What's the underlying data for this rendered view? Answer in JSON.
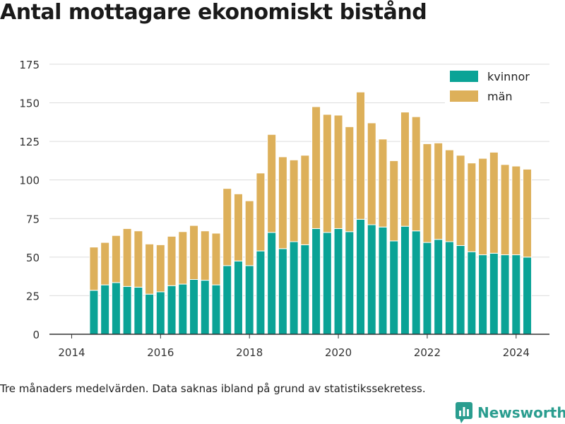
{
  "title": "Antal mottagare ekonomiskt bistånd",
  "caption": "Tre månaders medelvärden. Data saknas ibland på grund av statistikssekretess.",
  "brand": {
    "name": "Newsworthy",
    "icon": "newsworthy-chart-logo-icon"
  },
  "colors": {
    "kvinnor": "#0aa396",
    "man": "#ddb05a",
    "grid": "#dcdcdc",
    "axis": "#333333",
    "brand": "#2a9d8f"
  },
  "chart_data": {
    "type": "bar",
    "stacked": true,
    "x_tick_labels": [
      "2014",
      "2016",
      "2018",
      "2020",
      "2022",
      "2024"
    ],
    "y_tick_labels": [
      "0",
      "25",
      "50",
      "75",
      "100",
      "125",
      "150",
      "175"
    ],
    "xlim": [
      2013.5,
      2024.75
    ],
    "ylim": [
      0,
      180
    ],
    "grid": true,
    "legend_position": "top-right",
    "categories": [
      "2014-07",
      "2014-10",
      "2015-01",
      "2015-04",
      "2015-07",
      "2015-10",
      "2016-01",
      "2016-04",
      "2016-07",
      "2016-10",
      "2017-01",
      "2017-04",
      "2017-07",
      "2017-10",
      "2018-01",
      "2018-04",
      "2018-07",
      "2018-10",
      "2019-01",
      "2019-04",
      "2019-07",
      "2019-10",
      "2020-01",
      "2020-04",
      "2020-07",
      "2020-10",
      "2021-01",
      "2021-04",
      "2021-07",
      "2021-10",
      "2022-01",
      "2022-04",
      "2022-07",
      "2022-10",
      "2023-01",
      "2023-04",
      "2023-07",
      "2023-10",
      "2024-01",
      "2024-04"
    ],
    "series": [
      {
        "name": "kvinnor",
        "values": [
          28.5,
          32,
          33.5,
          31,
          30.5,
          26,
          27.5,
          31.5,
          32.5,
          35.5,
          35,
          32,
          44.5,
          47.5,
          44.5,
          54,
          66,
          55.5,
          60,
          58,
          68.5,
          66,
          68.5,
          66.5,
          74.5,
          71,
          69.5,
          60.5,
          70,
          67,
          59.5,
          61.5,
          60,
          57.5,
          53.5,
          51.5,
          52.5,
          51.5,
          51.5,
          50
        ]
      },
      {
        "name": "män",
        "values": [
          28,
          27.5,
          30.5,
          37.5,
          36.5,
          32.5,
          30.5,
          32,
          34,
          35,
          32,
          33.5,
          50,
          43.5,
          42,
          50.5,
          63.5,
          59.5,
          53,
          58,
          79,
          76.5,
          73.5,
          68,
          82.5,
          66,
          57,
          52,
          74,
          74,
          64,
          62.5,
          59.5,
          58.5,
          57.5,
          62.5,
          65.5,
          58.5,
          57.5,
          57
        ]
      }
    ]
  }
}
